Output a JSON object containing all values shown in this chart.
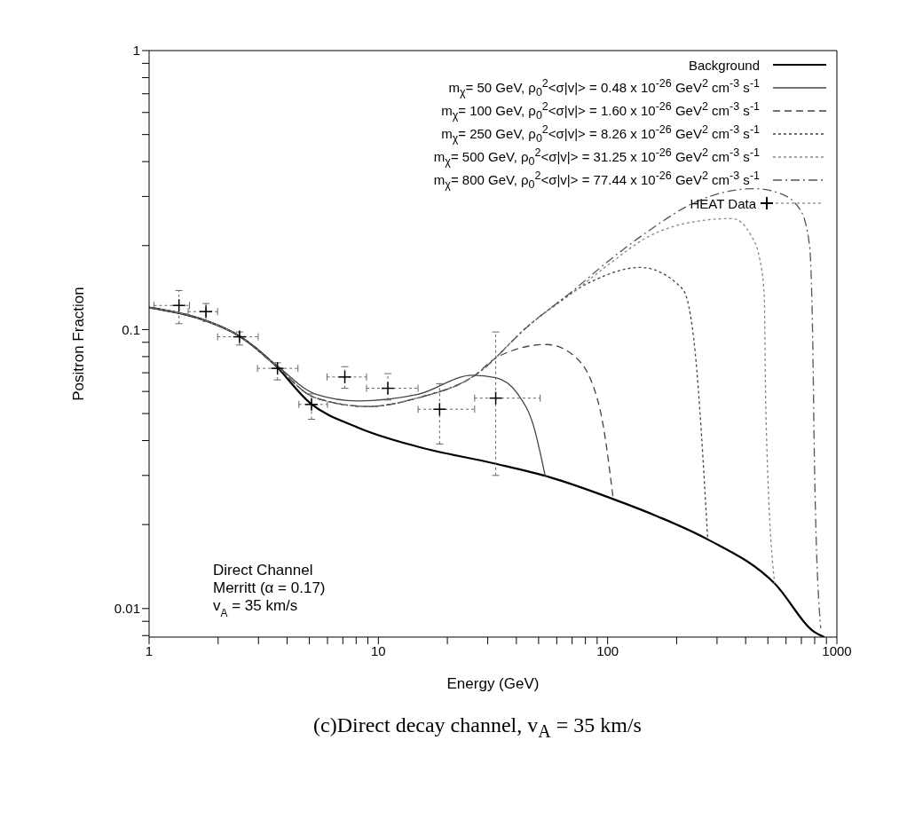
{
  "chart_data": {
    "type": "line",
    "xlabel": "Energy (GeV)",
    "ylabel": "Positron Fraction",
    "log": "xy",
    "xlim": [
      1,
      1000
    ],
    "ylim": [
      0.0079,
      1
    ],
    "xticks": [
      1,
      {
        "value": 2,
        "label": null
      },
      {
        "value": 3,
        "label": null
      },
      {
        "value": 4,
        "label": null
      },
      {
        "value": 5,
        "label": null
      },
      {
        "value": 6,
        "label": null
      },
      {
        "value": 7,
        "label": null
      },
      {
        "value": 8,
        "label": null
      },
      {
        "value": 9,
        "label": null
      },
      10,
      {
        "value": 20,
        "label": null
      },
      {
        "value": 30,
        "label": null
      },
      {
        "value": 40,
        "label": null
      },
      {
        "value": 50,
        "label": null
      },
      {
        "value": 60,
        "label": null
      },
      {
        "value": 70,
        "label": null
      },
      {
        "value": 80,
        "label": null
      },
      {
        "value": 90,
        "label": null
      },
      100,
      {
        "value": 200,
        "label": null
      },
      {
        "value": 300,
        "label": null
      },
      {
        "value": 400,
        "label": null
      },
      {
        "value": 500,
        "label": null
      },
      {
        "value": 600,
        "label": null
      },
      {
        "value": 700,
        "label": null
      },
      {
        "value": 800,
        "label": null
      },
      {
        "value": 900,
        "label": null
      },
      1000
    ],
    "yticks": [
      {
        "value": 0.008,
        "label": null
      },
      {
        "value": 0.009,
        "label": null
      },
      0.01,
      {
        "value": 0.02,
        "label": null
      },
      {
        "value": 0.03,
        "label": null
      },
      {
        "value": 0.04,
        "label": null
      },
      {
        "value": 0.05,
        "label": null
      },
      {
        "value": 0.06,
        "label": null
      },
      {
        "value": 0.07,
        "label": null
      },
      {
        "value": 0.08,
        "label": null
      },
      {
        "value": 0.09,
        "label": null
      },
      0.1,
      {
        "value": 0.2,
        "label": null
      },
      {
        "value": 0.3,
        "label": null
      },
      {
        "value": 0.4,
        "label": null
      },
      {
        "value": 0.5,
        "label": null
      },
      {
        "value": 0.6,
        "label": null
      },
      {
        "value": 0.7,
        "label": null
      },
      {
        "value": 0.8,
        "label": null
      },
      {
        "value": 0.9,
        "label": null
      },
      1
    ],
    "grid": false,
    "legend": "top right",
    "marker": "none",
    "series": [
      {
        "name": "Background",
        "color": "#000000",
        "line_style": "solid",
        "x": [
          1,
          1.69,
          2.48,
          3.49,
          5.02,
          8.12,
          14.9,
          31.6,
          56.5,
          105.6,
          165,
          273,
          535,
          805,
          881
        ],
        "values": [
          0.12,
          0.109,
          0.0947,
          0.0755,
          0.0547,
          0.0446,
          0.038,
          0.0332,
          0.0295,
          0.0247,
          0.0214,
          0.0177,
          0.0123,
          0.0082,
          0.0079
        ]
      },
      {
        "name": "m$_{χ}$= 50 GeV, ρ$_{0}$$^{2}$<σ|v|> = 0.48 x 10$^{-26}$ GeV$^{2}$ cm$^{-3}$ s$^{-1}$",
        "color": "#444444",
        "line_style": "solid",
        "x": [
          1,
          1.69,
          2.48,
          3.49,
          5.35,
          8.1,
          14.9,
          25.7,
          32.5,
          40.4,
          47.5,
          53.5
        ],
        "values": [
          0.12,
          0.109,
          0.0947,
          0.076,
          0.0586,
          0.0555,
          0.0586,
          0.0686,
          0.0672,
          0.059,
          0.0452,
          0.0297
        ]
      },
      {
        "name": "m$_{χ}$= 100 GeV, ρ$_{0}$$^{2}$<σ|v|> = 1.60 x 10$^{-26}$ GeV$^{2}$ cm$^{-3}$ s$^{-1}$",
        "color": "#444444",
        "line_style": "dashed",
        "x": [
          1,
          1.69,
          2.48,
          3.49,
          5.3,
          9,
          15,
          26,
          33.3,
          54.3,
          72,
          93,
          105.6
        ],
        "values": [
          0.12,
          0.109,
          0.0947,
          0.0755,
          0.057,
          0.053,
          0.057,
          0.068,
          0.08,
          0.0884,
          0.08,
          0.051,
          0.025
        ]
      },
      {
        "name": "m$_{χ}$= 250 GeV, ρ$_{0}$$^{2}$<σ|v|> = 8.26 x 10$^{-26}$ GeV$^{2}$ cm$^{-3}$ s$^{-1}$",
        "color": "#444444",
        "line_style": "dotted",
        "x": [
          1,
          1.69,
          2.48,
          3.49,
          5.3,
          9,
          15,
          26,
          46.3,
          87,
          139,
          212,
          241,
          273
        ],
        "values": [
          0.12,
          0.109,
          0.0947,
          0.0755,
          0.057,
          0.053,
          0.057,
          0.068,
          0.105,
          0.15,
          0.167,
          0.14,
          0.0826,
          0.018
        ]
      },
      {
        "name": "m$_{χ}$= 500 GeV, ρ$_{0}$$^{2}$<σ|v|> = 31.25 x 10$^{-26}$ GeV$^{2}$ cm$^{-3}$ s$^{-1}$",
        "color": "#888888",
        "line_style": "dotted",
        "x": [
          1,
          1.69,
          2.48,
          3.49,
          5.3,
          9,
          15,
          26,
          46.3,
          70,
          100,
          150,
          250,
          350,
          424,
          460,
          482,
          490,
          535
        ],
        "values": [
          0.12,
          0.109,
          0.0947,
          0.0755,
          0.057,
          0.053,
          0.057,
          0.068,
          0.105,
          0.135,
          0.17,
          0.215,
          0.245,
          0.25,
          0.216,
          0.18,
          0.133,
          0.051,
          0.0123
        ]
      },
      {
        "name": "m$_{χ}$= 800 GeV, ρ$_{0}$$^{2}$<σ|v|> = 77.44 x 10$^{-26}$ GeV$^{2}$ cm$^{-3}$ s$^{-1}$",
        "color": "#555555",
        "line_style": "dashdot",
        "x": [
          1,
          1.69,
          2.48,
          3.49,
          5.3,
          9,
          15,
          26,
          46.3,
          70,
          100,
          150,
          250,
          434,
          550,
          690,
          760,
          783,
          800,
          850
        ],
        "values": [
          0.12,
          0.109,
          0.0947,
          0.0755,
          0.057,
          0.053,
          0.057,
          0.068,
          0.105,
          0.137,
          0.175,
          0.225,
          0.29,
          0.32,
          0.31,
          0.27,
          0.2,
          0.1,
          0.03,
          0.0085
        ]
      },
      {
        "name": "HEAT Data",
        "type": "scatter",
        "color": "#000000",
        "marker": "cross",
        "x": [
          1.35,
          1.77,
          2.48,
          3.63,
          5.11,
          7.14,
          11.0,
          18.5,
          32.5
        ],
        "values": [
          0.122,
          0.116,
          0.0942,
          0.0726,
          0.0539,
          0.0676,
          0.0616,
          0.0518,
          0.0568
        ],
        "xerrors": [
          [
            1.05,
            1.5
          ],
          [
            1.48,
            1.99
          ],
          [
            1.99,
            2.99
          ],
          [
            2.97,
            4.46
          ],
          [
            4.5,
            6.0
          ],
          [
            5.97,
            8.88
          ],
          [
            8.88,
            14.9
          ],
          [
            14.9,
            26.3
          ],
          [
            26.3,
            50.8
          ]
        ],
        "errors": [
          [
            0.105,
            0.138
          ],
          [
            0.107,
            0.124
          ],
          [
            0.088,
            0.098
          ],
          [
            0.066,
            0.076
          ],
          [
            0.0477,
            0.0588
          ],
          [
            0.0616,
            0.0736
          ],
          [
            0.0559,
            0.0695
          ],
          [
            0.0389,
            0.064
          ],
          [
            0.03,
            0.098
          ]
        ]
      }
    ],
    "annotations": [
      "Direct Channel",
      "Merritt (α = 0.17)",
      "v$_{A}$ =  35 km/s",
      "(c)Direct decay channel, v$_{A}$ = 35 km/s"
    ]
  }
}
